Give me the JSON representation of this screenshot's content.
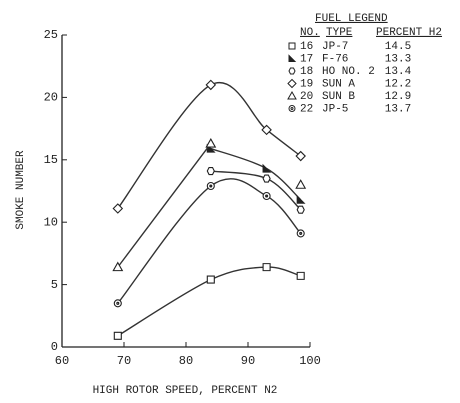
{
  "chart_data": {
    "type": "line",
    "x_label": "HIGH ROTOR SPEED, PERCENT N2",
    "y_label": "SMOKE NUMBER",
    "x": [
      69,
      84,
      93,
      98.5
    ],
    "xlim": [
      60,
      100
    ],
    "xticks": [
      60,
      70,
      80,
      90,
      100
    ],
    "ylim": [
      0,
      25
    ],
    "yticks": [
      0,
      5,
      10,
      15,
      20,
      25
    ],
    "color": "#333333",
    "legend_title": "FUEL LEGEND",
    "legend_headers": [
      "NO.",
      "TYPE",
      "PERCENT H2"
    ],
    "series": [
      {
        "no": "16",
        "name": "JP-7",
        "h2": 14.5,
        "marker": "square",
        "values": [
          0.9,
          5.4,
          6.4,
          5.7
        ]
      },
      {
        "no": "17",
        "name": "F-76",
        "h2": 13.3,
        "marker": "flag",
        "values": [
          null,
          15.9,
          14.3,
          11.8
        ]
      },
      {
        "no": "18",
        "name": "HO NO. 2",
        "h2": 13.4,
        "marker": "hexagon",
        "values": [
          null,
          14.1,
          13.5,
          11.0
        ]
      },
      {
        "no": "19",
        "name": "SUN A",
        "h2": 12.2,
        "marker": "diamond",
        "values": [
          11.1,
          21.0,
          17.4,
          15.3
        ]
      },
      {
        "no": "20",
        "name": "SUN B",
        "h2": 12.9,
        "marker": "triangle",
        "values": [
          6.4,
          16.3,
          null,
          13.0
        ]
      },
      {
        "no": "22",
        "name": "JP-5",
        "h2": 13.7,
        "marker": "circle-dot",
        "values": [
          3.5,
          12.9,
          12.1,
          9.1
        ]
      }
    ]
  }
}
